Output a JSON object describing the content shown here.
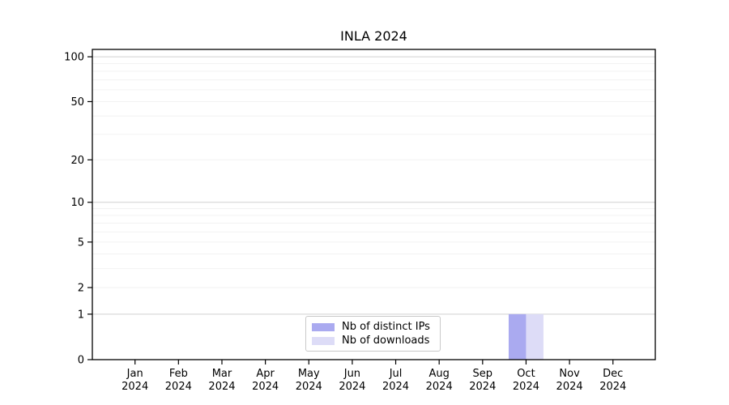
{
  "chart_data": {
    "type": "bar",
    "title": "INLA 2024",
    "categories": [
      "Jan 2024",
      "Feb 2024",
      "Mar 2024",
      "Apr 2024",
      "May 2024",
      "Jun 2024",
      "Jul 2024",
      "Aug 2024",
      "Sep 2024",
      "Oct 2024",
      "Nov 2024",
      "Dec 2024"
    ],
    "series": [
      {
        "name": "Nb of distinct IPs",
        "color": "#aaaaf0",
        "values": [
          0,
          0,
          0,
          0,
          0,
          0,
          0,
          0,
          0,
          1,
          0,
          0
        ]
      },
      {
        "name": "Nb of downloads",
        "color": "#dddcf7",
        "values": [
          0,
          0,
          0,
          0,
          0,
          0,
          0,
          0,
          0,
          1,
          0,
          0
        ]
      }
    ],
    "xlabel": "",
    "ylabel": "",
    "y_axis": {
      "scale": "log1p",
      "tick_values": [
        0,
        1,
        2,
        5,
        10,
        20,
        50,
        100
      ],
      "ylim": [
        0,
        112
      ],
      "minor_gridlines": [
        2,
        3,
        4,
        5,
        6,
        7,
        8,
        9,
        20,
        30,
        40,
        50,
        60,
        70,
        80,
        90
      ],
      "major_gridlines": [
        1,
        10,
        100
      ]
    },
    "legend": {
      "location": "inside-bottom-center"
    },
    "grid": true
  },
  "colors": {
    "frame": "#000000",
    "background": "#ffffff",
    "major_grid": "#d0d0d0",
    "minor_grid": "#f0f0f0",
    "legend_border": "#c9c9c9",
    "text": "#000000"
  }
}
